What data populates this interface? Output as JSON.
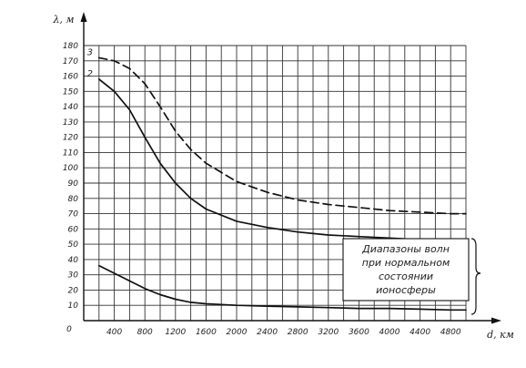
{
  "chart_data": {
    "type": "line",
    "xlabel": "d, км",
    "ylabel": "λ, м",
    "xlim": [
      0,
      5000
    ],
    "ylim": [
      0,
      180
    ],
    "x_ticks": [
      400,
      800,
      1200,
      1600,
      2000,
      2400,
      2800,
      3200,
      3600,
      4000,
      4400,
      4800
    ],
    "y_ticks": [
      10,
      20,
      30,
      40,
      50,
      60,
      70,
      80,
      90,
      100,
      110,
      120,
      130,
      140,
      150,
      160,
      170,
      180
    ],
    "origin_label": "0",
    "grid": true,
    "legend_box": {
      "lines": [
        "Диапазоны волн",
        "при нормальном",
        "состоянии",
        "ионосферы"
      ]
    },
    "series": [
      {
        "name": "3",
        "style": "dashed",
        "x": [
          200,
          400,
          600,
          800,
          1000,
          1200,
          1400,
          1600,
          2000,
          2400,
          2800,
          3200,
          3600,
          4000,
          4400,
          4800,
          5000
        ],
        "y": [
          172,
          170,
          165,
          155,
          140,
          124,
          112,
          103,
          91,
          84,
          79,
          76,
          74,
          72,
          71,
          70,
          70
        ]
      },
      {
        "name": "2",
        "style": "solid",
        "x": [
          200,
          400,
          600,
          800,
          1000,
          1200,
          1400,
          1600,
          2000,
          2400,
          2800,
          3200,
          3600,
          4000,
          4400,
          4800,
          5000
        ],
        "y": [
          158,
          150,
          138,
          120,
          103,
          90,
          80,
          73,
          65,
          61,
          58,
          56,
          55,
          54,
          53,
          53,
          53
        ]
      },
      {
        "name": "",
        "style": "solid",
        "x": [
          200,
          400,
          600,
          800,
          1000,
          1200,
          1400,
          1600,
          2000,
          2400,
          2800,
          3200,
          3600,
          4000,
          4400,
          4800,
          5000
        ],
        "y": [
          36,
          31,
          26,
          21,
          17,
          14,
          12,
          11,
          10,
          9.5,
          9,
          8.5,
          8,
          8,
          7.5,
          7,
          7
        ]
      }
    ]
  }
}
